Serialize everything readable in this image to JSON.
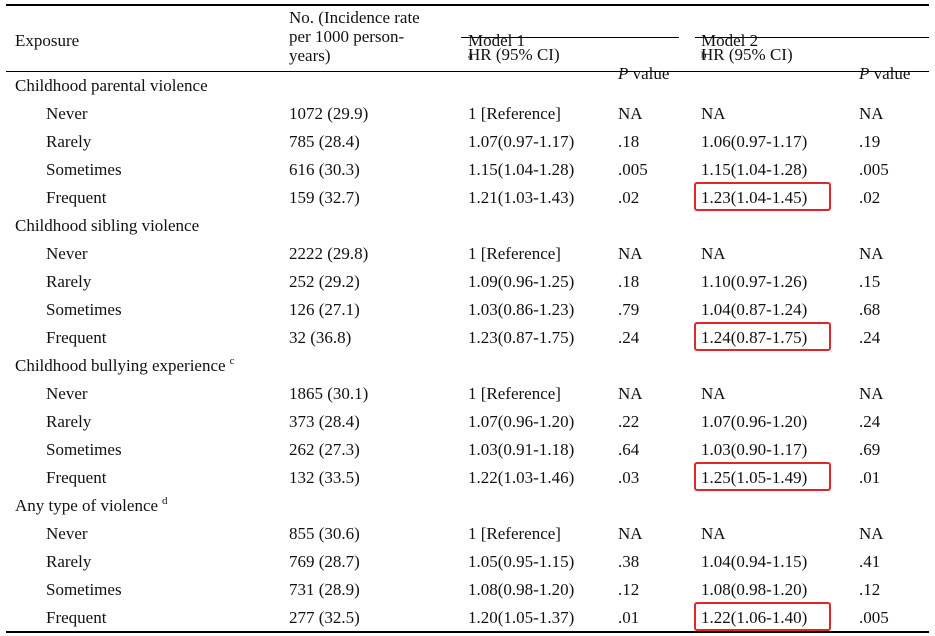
{
  "header": {
    "exposure": "Exposure",
    "incidence": "No. (Incidence rate\nper 1000 person-\nyears)",
    "model1": "Model 1",
    "model1_sup": "a",
    "model2": "Model 2",
    "model2_sup": "b",
    "hr1": "HR (95% CI)",
    "p1_italic": "P",
    "p1_rest": " value",
    "hr2": "HR (95% CI)",
    "p2_italic": "P",
    "p2_rest": " value"
  },
  "rows": [
    {
      "type": "section",
      "label": "Childhood parental violence",
      "sup": ""
    },
    {
      "type": "data",
      "label": "Never",
      "no": "1072 (29.9)",
      "hr1": "1 [Reference]",
      "p1": "NA",
      "hr2": "NA",
      "p2": "NA",
      "highlight": false
    },
    {
      "type": "data",
      "label": "Rarely",
      "no": "785 (28.4)",
      "hr1": "1.07(0.97-1.17)",
      "p1": ".18",
      "hr2": "1.06(0.97-1.17)",
      "p2": ".19",
      "highlight": false
    },
    {
      "type": "data",
      "label": "Sometimes",
      "no": "616 (30.3)",
      "hr1": "1.15(1.04-1.28)",
      "p1": ".005",
      "hr2": "1.15(1.04-1.28)",
      "p2": ".005",
      "highlight": false
    },
    {
      "type": "data",
      "label": "Frequent",
      "no": "159 (32.7)",
      "hr1": "1.21(1.03-1.43)",
      "p1": ".02",
      "hr2": "1.23(1.04-1.45)",
      "p2": ".02",
      "highlight": true
    },
    {
      "type": "section",
      "label": "Childhood sibling violence",
      "sup": ""
    },
    {
      "type": "data",
      "label": "Never",
      "no": "2222 (29.8)",
      "hr1": "1 [Reference]",
      "p1": "NA",
      "hr2": "NA",
      "p2": "NA",
      "highlight": false
    },
    {
      "type": "data",
      "label": "Rarely",
      "no": "252 (29.2)",
      "hr1": "1.09(0.96-1.25)",
      "p1": ".18",
      "hr2": "1.10(0.97-1.26)",
      "p2": ".15",
      "highlight": false
    },
    {
      "type": "data",
      "label": "Sometimes",
      "no": "126 (27.1)",
      "hr1": "1.03(0.86-1.23)",
      "p1": ".79",
      "hr2": "1.04(0.87-1.24)",
      "p2": ".68",
      "highlight": false
    },
    {
      "type": "data",
      "label": "Frequent",
      "no": "32 (36.8)",
      "hr1": "1.23(0.87-1.75)",
      "p1": ".24",
      "hr2": "1.24(0.87-1.75)",
      "p2": ".24",
      "highlight": true
    },
    {
      "type": "section",
      "label": "Childhood bullying experience",
      "sup": "c"
    },
    {
      "type": "data",
      "label": "Never",
      "no": "1865 (30.1)",
      "hr1": "1 [Reference]",
      "p1": "NA",
      "hr2": "NA",
      "p2": "NA",
      "highlight": false
    },
    {
      "type": "data",
      "label": "Rarely",
      "no": "373 (28.4)",
      "hr1": "1.07(0.96-1.20)",
      "p1": ".22",
      "hr2": "1.07(0.96-1.20)",
      "p2": ".24",
      "highlight": false
    },
    {
      "type": "data",
      "label": "Sometimes",
      "no": "262 (27.3)",
      "hr1": "1.03(0.91-1.18)",
      "p1": ".64",
      "hr2": "1.03(0.90-1.17)",
      "p2": ".69",
      "highlight": false
    },
    {
      "type": "data",
      "label": "Frequent",
      "no": "132 (33.5)",
      "hr1": "1.22(1.03-1.46)",
      "p1": ".03",
      "hr2": "1.25(1.05-1.49)",
      "p2": ".01",
      "highlight": true
    },
    {
      "type": "section",
      "label": "Any type of violence",
      "sup": "d"
    },
    {
      "type": "data",
      "label": "Never",
      "no": "855 (30.6)",
      "hr1": "1 [Reference]",
      "p1": "NA",
      "hr2": "NA",
      "p2": "NA",
      "highlight": false
    },
    {
      "type": "data",
      "label": "Rarely",
      "no": "769 (28.7)",
      "hr1": "1.05(0.95-1.15)",
      "p1": ".38",
      "hr2": "1.04(0.94-1.15)",
      "p2": ".41",
      "highlight": false
    },
    {
      "type": "data",
      "label": "Sometimes",
      "no": "731 (28.9)",
      "hr1": "1.08(0.98-1.20)",
      "p1": ".12",
      "hr2": "1.08(0.98-1.20)",
      "p2": ".12",
      "highlight": false
    },
    {
      "type": "data",
      "label": "Frequent",
      "no": "277 (32.5)",
      "hr1": "1.20(1.05-1.37)",
      "p1": ".01",
      "hr2": "1.22(1.06-1.40)",
      "p2": ".005",
      "highlight": true
    }
  ],
  "highlight_color": "#e0252b"
}
